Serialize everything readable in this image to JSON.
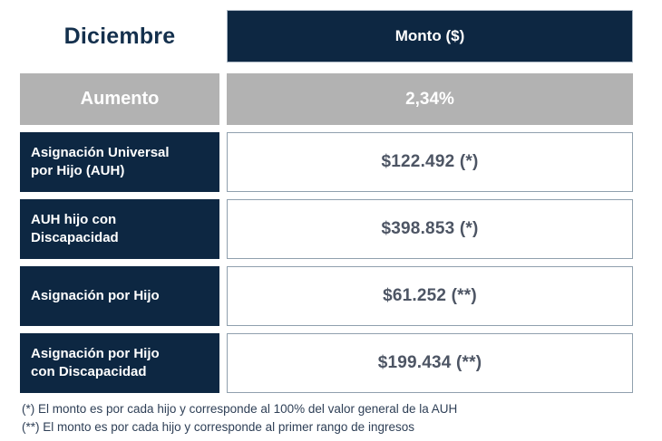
{
  "table": {
    "header": {
      "month": "Diciembre",
      "amount_label": "Monto ($)"
    },
    "increase_row": {
      "label": "Aumento",
      "value": "2,34%"
    },
    "rows": [
      {
        "label": "Asignación Universal\npor Hijo (AUH)",
        "value": "$122.492 (*)"
      },
      {
        "label": "AUH hijo con\nDiscapacidad",
        "value": "$398.853 (*)"
      },
      {
        "label": "Asignación por Hijo",
        "value": "$61.252 (**)"
      },
      {
        "label": "Asignación por Hijo\ncon Discapacidad",
        "value": "$199.434 (**)"
      }
    ],
    "footnotes": [
      "(*) El monto es por cada hijo y corresponde al 100% del valor general de la AUH",
      "(**) El monto es por cada hijo y corresponde al primer rango de ingresos"
    ]
  },
  "colors": {
    "navy": "#0d2742",
    "gray": "#b2b2b2",
    "value_text": "#4d5564",
    "box_border": "#90a0ae",
    "month_text": "#14304d",
    "footnote_text": "#2e3f56"
  },
  "chart_data": {
    "type": "table",
    "title": "Diciembre",
    "columns": [
      "Diciembre",
      "Monto ($)"
    ],
    "rows": [
      [
        "Aumento",
        "2,34%"
      ],
      [
        "Asignación Universal por Hijo (AUH)",
        "$122.492 (*)"
      ],
      [
        "AUH hijo con Discapacidad",
        "$398.853 (*)"
      ],
      [
        "Asignación por Hijo",
        "$61.252 (**)"
      ],
      [
        "Asignación por Hijo con Discapacidad",
        "$199.434 (**)"
      ]
    ],
    "values_numeric": {
      "aumento_pct": 2.34,
      "auh": 122492,
      "auh_hijo_discapacidad": 398853,
      "asignacion_por_hijo": 61252,
      "asignacion_por_hijo_discapacidad": 199434
    },
    "notes": [
      "(*) El monto es por cada hijo y corresponde al 100% del valor general de la AUH",
      "(**) El monto es por cada hijo y corresponde al primer rango de ingresos"
    ],
    "layout": {
      "grid": false,
      "legend": "none"
    }
  }
}
